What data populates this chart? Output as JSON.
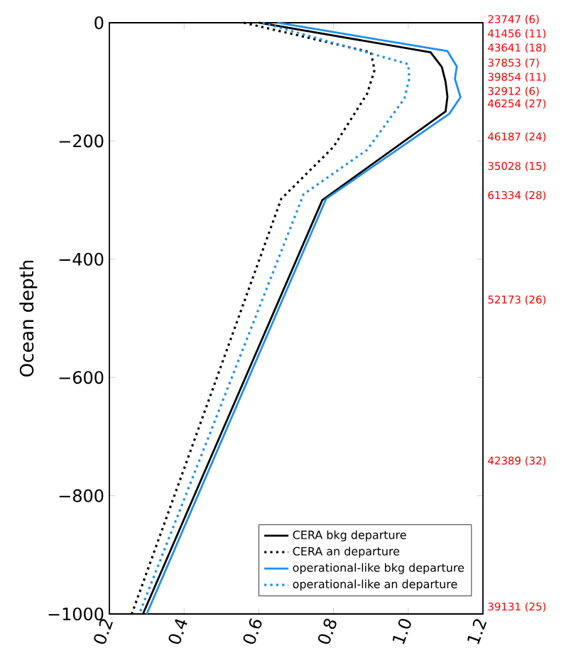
{
  "chart_data": {
    "type": "line",
    "ylabel": "Ocean depth",
    "xlim": [
      0.2,
      1.2
    ],
    "xticks": [
      0.2,
      0.4,
      0.6,
      0.8,
      {
        "value": 1.0,
        "label": "1.0"
      },
      1.2
    ],
    "ylim": [
      -1000,
      0
    ],
    "yticks": [
      {
        "value": -1000,
        "label": "−1000"
      },
      {
        "value": -800,
        "label": "−800"
      },
      {
        "value": -600,
        "label": "−600"
      },
      {
        "value": -400,
        "label": "−400"
      },
      {
        "value": -200,
        "label": "−200"
      },
      0
    ],
    "legend": "bottom right",
    "grid": false,
    "series": [
      {
        "name": "CERA bkg departure",
        "color": "#000000",
        "line_style": "solid",
        "x": [
          0.6,
          1.06,
          1.09,
          1.1,
          1.105,
          1.1,
          0.77,
          0.29
        ],
        "values": [
          0,
          -50,
          -75,
          -100,
          -125,
          -150,
          -300,
          -1000
        ]
      },
      {
        "name": "CERA an departure",
        "color": "#000000",
        "line_style": "dotted",
        "x": [
          0.56,
          0.9,
          0.91,
          0.89,
          0.8,
          0.66,
          0.26
        ],
        "values": [
          0,
          -50,
          -80,
          -120,
          -210,
          -298,
          -1000
        ]
      },
      {
        "name": "operational-like bkg departure",
        "color": "#1e8ff0",
        "line_style": "solid",
        "x": [
          0.65,
          1.105,
          1.13,
          1.125,
          1.14,
          1.11,
          0.78,
          0.3
        ],
        "values": [
          0,
          -48,
          -74,
          -95,
          -126,
          -154,
          -298,
          -1000
        ]
      },
      {
        "name": "operational-like an departure",
        "color": "#1e8ff0",
        "line_style": "dotted",
        "x": [
          0.61,
          1.0,
          1.003,
          0.99,
          0.89,
          0.72,
          0.28
        ],
        "values": [
          0,
          -70,
          -94,
          -128,
          -215,
          -290,
          -1000
        ]
      }
    ],
    "annotations": [
      "23747 (6)",
      "41456 (11)",
      "43641 (18)",
      "37853 (7)",
      "39854 (11)",
      "32912 (6)",
      "46254 (27)",
      "46187 (24)",
      "35028 (15)",
      "61334 (28)",
      "52173 (26)",
      "42389 (32)",
      "39131 (25)"
    ]
  }
}
